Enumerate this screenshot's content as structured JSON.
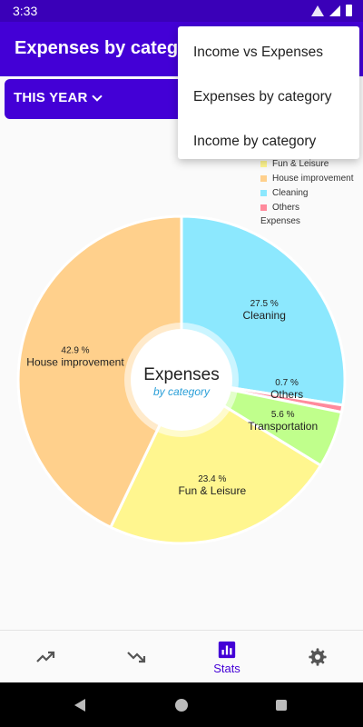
{
  "status_bar": {
    "time": "3:33"
  },
  "app_bar": {
    "title": "Expenses by category"
  },
  "period": {
    "label": "THIS YEAR"
  },
  "menu": {
    "items": [
      "Income vs Expenses",
      "Expenses by category",
      "Income by category"
    ]
  },
  "legend": {
    "description": "Expenses",
    "entries": [
      {
        "label": "Fun & Leisure",
        "color": "#fff68f"
      },
      {
        "label": "House improvement",
        "color": "#ffd08c"
      },
      {
        "label": "Cleaning",
        "color": "#8ce8fe"
      },
      {
        "label": "Others",
        "color": "#ff8a9c"
      }
    ]
  },
  "chart_data": {
    "type": "pie",
    "center_title": "Expenses",
    "center_subtitle": "by category",
    "slices": [
      {
        "label": "Cleaning",
        "value": 27.5,
        "value_label": "27.5 %",
        "color": "#8ce8fe"
      },
      {
        "label": "Others",
        "value": 0.7,
        "value_label": "0.7 %",
        "color": "#ff8a9c"
      },
      {
        "label": "Transportation",
        "value": 5.6,
        "value_label": "5.6 %",
        "color": "#c0ff8c"
      },
      {
        "label": "Fun & Leisure",
        "value": 23.4,
        "value_label": "23.4 %",
        "color": "#fff68f"
      },
      {
        "label": "House improvement",
        "value": 42.9,
        "value_label": "42.9 %",
        "color": "#ffd08c"
      }
    ]
  },
  "bottom_nav": {
    "items": [
      {
        "icon": "trending-up-icon",
        "label": ""
      },
      {
        "icon": "trending-down-icon",
        "label": ""
      },
      {
        "icon": "bar-chart-icon",
        "label": "Stats"
      },
      {
        "icon": "gear-icon",
        "label": ""
      }
    ],
    "active_color": "#4300d6"
  }
}
